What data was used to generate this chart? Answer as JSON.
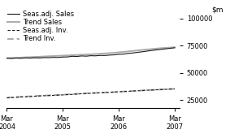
{
  "ylim": [
    18000,
    108000
  ],
  "yticks": [
    25000,
    50000,
    75000,
    100000
  ],
  "ytick_labels": [
    "25000",
    "50000",
    "75000",
    "100000"
  ],
  "xlim_start": 0,
  "xlim_end": 37,
  "xtick_positions": [
    0,
    12,
    24,
    36
  ],
  "xtick_labels": [
    "Mar\n2004",
    "Mar\n2005",
    "Mar\n2006",
    "Mar\n2007"
  ],
  "seas_sales": [
    63500,
    63200,
    63600,
    63300,
    63700,
    63500,
    63800,
    63600,
    64000,
    63900,
    64200,
    64100,
    64500,
    64600,
    65200,
    65000,
    65500,
    65300,
    65700,
    65600,
    66000,
    65900,
    66300,
    66500,
    67000,
    67200,
    67800,
    68200,
    68800,
    69300,
    69900,
    70500,
    71000,
    71500,
    72000,
    72500,
    73000
  ],
  "trend_sales": [
    63500,
    63600,
    63800,
    64000,
    64200,
    64400,
    64600,
    64800,
    65000,
    65200,
    65400,
    65600,
    65800,
    66000,
    66200,
    66400,
    66600,
    66800,
    67000,
    67200,
    67500,
    67800,
    68100,
    68400,
    68800,
    69200,
    69600,
    70100,
    70600,
    71000,
    71400,
    71800,
    72200,
    72600,
    72900,
    73200,
    73500
  ],
  "seas_inv": [
    27000,
    27200,
    27500,
    27800,
    28000,
    28200,
    28500,
    28700,
    29000,
    29100,
    29300,
    29500,
    29700,
    30000,
    30200,
    30500,
    30800,
    31000,
    31200,
    31500,
    31700,
    31900,
    32100,
    32300,
    32600,
    32800,
    33000,
    33300,
    33500,
    33700,
    34000,
    34200,
    34400,
    34600,
    34800,
    35000,
    35200
  ],
  "trend_inv": [
    27200,
    27400,
    27700,
    28000,
    28200,
    28400,
    28700,
    28900,
    29100,
    29300,
    29500,
    29700,
    29900,
    30200,
    30400,
    30700,
    30900,
    31100,
    31300,
    31500,
    31700,
    31900,
    32100,
    32300,
    32600,
    32800,
    33100,
    33300,
    33500,
    33800,
    34000,
    34200,
    34400,
    34700,
    34900,
    35100,
    35300
  ],
  "color_black": "#1a1a1a",
  "color_gray": "#aaaaaa",
  "legend_labels": [
    "Seas.adj. Sales",
    "Trend Sales",
    "Seas.adj. Inv.",
    "Trend Inv."
  ],
  "legend_fontsize": 6.0,
  "tick_fontsize": 6.0,
  "ylabel_fontsize": 6.5
}
